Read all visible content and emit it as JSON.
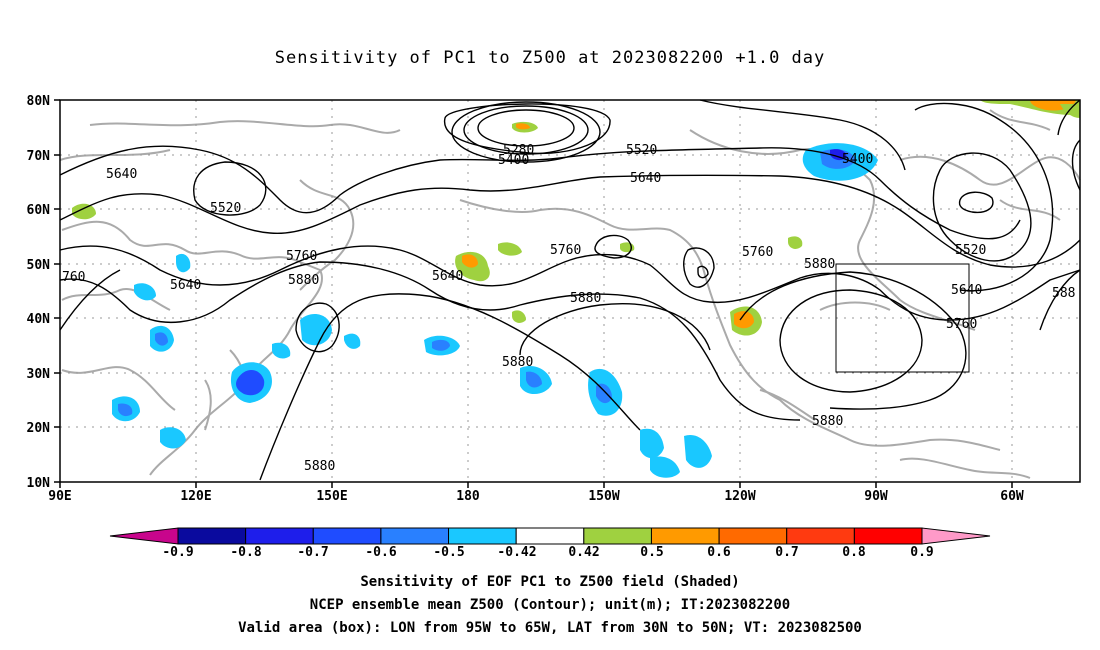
{
  "title": "Sensitivity of PC1 to Z500 at 2023082200 +1.0 day",
  "lat_labels": [
    "80N",
    "70N",
    "60N",
    "50N",
    "40N",
    "30N",
    "20N",
    "10N"
  ],
  "lon_labels": [
    "90E",
    "120E",
    "150E",
    "180",
    "150W",
    "120W",
    "90W",
    "60W"
  ],
  "contour_labels": [
    "5280",
    "5400",
    "5520",
    "5640",
    "5400",
    "5520",
    "5640",
    "5520",
    "5760",
    "5880",
    "5760",
    "5640",
    "5880",
    "5640",
    "5760",
    "5760",
    "5880",
    "5880",
    "5880",
    "5880",
    "5520",
    "5640",
    "5760",
    "760",
    "588"
  ],
  "colorbar": {
    "labels": [
      "-0.9",
      "-0.8",
      "-0.7",
      "-0.6",
      "-0.5",
      "-0.42",
      "0.42",
      "0.5",
      "0.6",
      "0.7",
      "0.8",
      "0.9"
    ],
    "colors": [
      "#0a0a9e",
      "#1e1eeb",
      "#1f4cff",
      "#2980ff",
      "#1ac8ff",
      "#ffffff",
      "#9fd140",
      "#ff9a00",
      "#ff6a00",
      "#ff3a10",
      "#ff0000"
    ],
    "left_arrow_color": "#c8058c",
    "right_arrow_color": "#ff9ac8"
  },
  "captions": [
    "Sensitivity of EOF PC1 to Z500 field (Shaded)",
    "NCEP ensemble mean Z500 (Contour); unit(m); IT:2023082200",
    "Valid area (box): LON from 95W to 65W, LAT from 30N to 50N; VT: 2023082500"
  ]
}
